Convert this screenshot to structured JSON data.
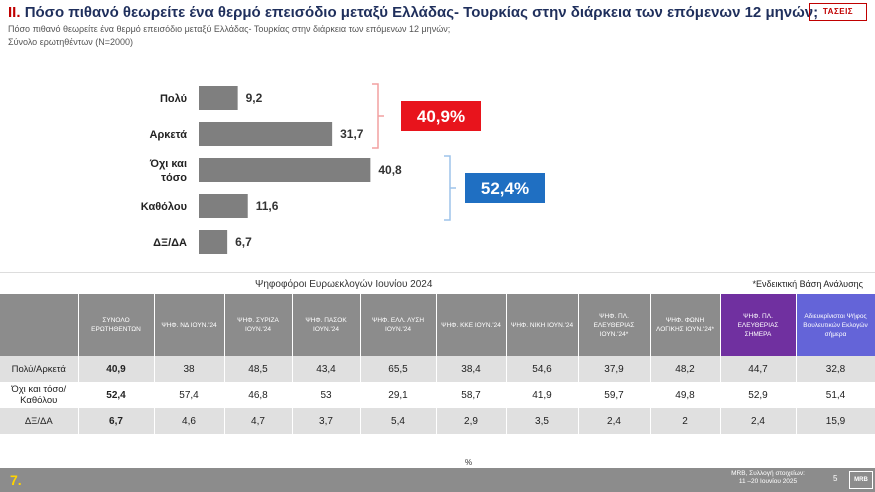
{
  "header": {
    "num": "II.",
    "title": "Πόσο πιθανό θεωρείτε ένα θερμό επεισόδιο μεταξύ Ελλάδας- Τουρκίας στην διάρκεια των επόμενων 12 μηνών;",
    "subtitle1": "Πόσο πιθανό θεωρείτε ένα θερμό επεισόδιο μεταξύ Ελλάδας- Τουρκίας στην διάρκεια των επόμενων 12 μηνών;",
    "subtitle2": "Σύνολο ερωτηθέντων (N=2000)",
    "logo": "ΤΑΣΕΙΣ"
  },
  "chart_data": {
    "type": "bar",
    "orientation": "horizontal",
    "categories": [
      "Πολύ",
      "Αρκετά",
      "Όχι και τόσο",
      "Καθόλου",
      "ΔΞ/ΔΑ"
    ],
    "values": [
      9.2,
      31.7,
      40.8,
      11.6,
      6.7
    ],
    "value_labels": [
      "9,2",
      "31,7",
      "40,8",
      "11,6",
      "6,7"
    ],
    "bar_color": "#7f7f7f",
    "grid": false,
    "groups": [
      {
        "label": "40,9%",
        "color": "#e8141c",
        "from": 0,
        "to": 1
      },
      {
        "label": "52,4%",
        "color": "#1f6fc2",
        "from": 2,
        "to": 3
      }
    ]
  },
  "table": {
    "group_title": "Ψηφοφόροι Ευρωεκλογών Ιουνίου 2024",
    "note": "*Ενδεικτική Βάση Ανάλυσης",
    "columns": [
      "ΣΥΝΟΛΟ ΕΡΩΤΗΘΕΝΤΩΝ",
      "ΨΗΦ. ΝΔ ΙΟΥΝ.'24",
      "ΨΗΦ. ΣΥΡΙΖΑ ΙΟΥΝ.'24",
      "ΨΗΦ. ΠΑΣΟΚ ΙΟΥΝ.'24",
      "ΨΗΦ. ΕΛΛ. ΛΥΣΗ ΙΟΥΝ.'24",
      "ΨΗΦ. ΚΚΕ ΙΟΥΝ.'24",
      "ΨΗΦ. ΝΙΚΗ ΙΟΥΝ.'24",
      "ΨΗΦ. ΠΛ. ΕΛΕΥΘΕΡΙΑΣ ΙΟΥΝ.'24*",
      "ΨΗΦ. ΦΩΝΗ ΛΟΓΙΚΗΣ ΙΟΥΝ.'24*",
      "ΨΗΦ. ΠΛ. ΕΛΕΥΘΕΡΙΑΣ ΣΗΜΕΡΑ",
      "Αδιευκρίνιστοι Ψήφος Βουλευτικών Εκλογών σήμερα"
    ],
    "rows": [
      {
        "label": "Πολύ/Αρκετά",
        "values": [
          "40,9",
          "38",
          "48,5",
          "43,4",
          "65,5",
          "38,4",
          "54,6",
          "37,9",
          "48,2",
          "44,7",
          "32,8"
        ]
      },
      {
        "label": "Όχι και τόσο/Καθόλου",
        "values": [
          "52,4",
          "57,4",
          "46,8",
          "53",
          "29,1",
          "58,7",
          "41,9",
          "59,7",
          "49,8",
          "52,9",
          "51,4"
        ]
      },
      {
        "label": "ΔΞ/ΔΑ",
        "values": [
          "6,7",
          "4,6",
          "4,7",
          "3,7",
          "5,4",
          "2,9",
          "3,5",
          "2,4",
          "2",
          "2,4",
          "15,9"
        ]
      }
    ],
    "pct_sign": "%"
  },
  "footer": {
    "page": "7.",
    "source_line1": "MRB, Συλλογή στοιχείων:",
    "source_line2": "11 –20 Ιουνίου 2025",
    "page_index": "5",
    "logo": "MRB"
  }
}
